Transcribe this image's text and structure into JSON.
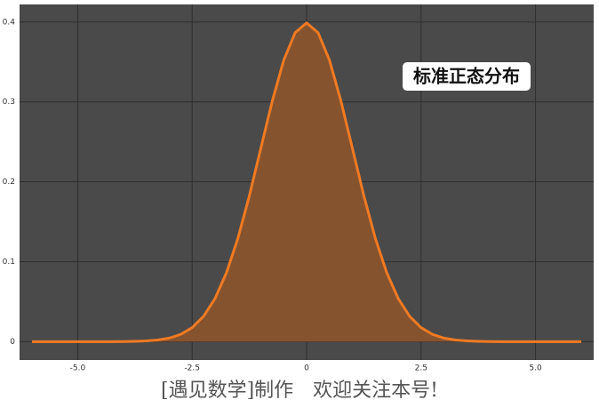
{
  "chart_data": {
    "type": "area",
    "annotation": "标准正态分布",
    "footer": "[遇见数学]制作　欢迎关注本号!",
    "x": [
      -6,
      -5.75,
      -5.5,
      -5.25,
      -5,
      -4.75,
      -4.5,
      -4.25,
      -4,
      -3.75,
      -3.5,
      -3.25,
      -3,
      -2.75,
      -2.5,
      -2.25,
      -2,
      -1.75,
      -1.5,
      -1.25,
      -1,
      -0.75,
      -0.5,
      -0.25,
      0,
      0.25,
      0.5,
      0.75,
      1,
      1.25,
      1.5,
      1.75,
      2,
      2.25,
      2.5,
      2.75,
      3,
      3.25,
      3.5,
      3.75,
      4,
      4.25,
      4.5,
      4.75,
      5,
      5.25,
      5.5,
      5.75,
      6
    ],
    "series": [
      {
        "color": "#f07a22",
        "fill": "#86532f",
        "values": [
          0,
          0,
          0,
          0,
          0,
          0,
          0,
          0,
          0.0001,
          0.0004,
          0.0009,
          0.002,
          0.0044,
          0.0091,
          0.0175,
          0.0317,
          0.054,
          0.0863,
          0.1295,
          0.1826,
          0.242,
          0.3011,
          0.3521,
          0.3867,
          0.3989,
          0.3867,
          0.3521,
          0.3011,
          0.242,
          0.1826,
          0.1295,
          0.0863,
          0.054,
          0.0317,
          0.0175,
          0.0091,
          0.0044,
          0.002,
          0.0009,
          0.0004,
          0.0001,
          0,
          0,
          0,
          0,
          0,
          0,
          0,
          0
        ]
      }
    ],
    "xlim": [
      -6.27,
      6.27
    ],
    "ylim": [
      -0.023,
      0.422
    ],
    "xticks": [
      {
        "value": -5,
        "label": "-5.0"
      },
      -2.5,
      0,
      2.5,
      {
        "value": 5,
        "label": "5.0"
      }
    ],
    "yticks": [
      0,
      0.1,
      0.2,
      0.3,
      0.4
    ],
    "grid": true
  }
}
